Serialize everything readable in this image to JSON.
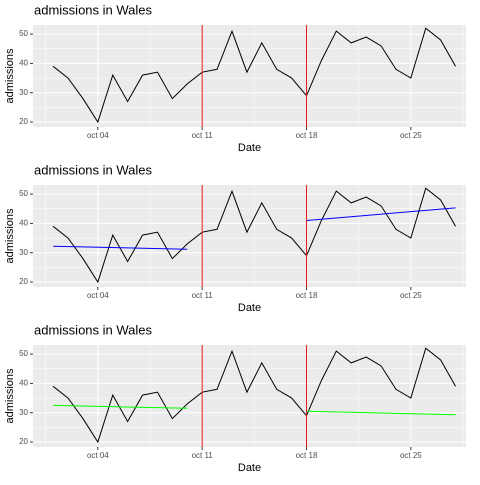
{
  "chart_data": [
    {
      "type": "line",
      "title": "admissions in Wales",
      "xlabel": "Date",
      "ylabel": "admissions",
      "xlim": [
        -0.35,
        28.7
      ],
      "ylim": [
        18.3,
        53.1
      ],
      "xticks": [
        {
          "value": 4,
          "label": "oct 04"
        },
        {
          "value": 11,
          "label": "oct 11"
        },
        {
          "value": 18,
          "label": "oct 18"
        },
        {
          "value": 25,
          "label": "oct 25"
        }
      ],
      "yticks": [
        20,
        30,
        40,
        50
      ],
      "grid": true,
      "vlines": [
        11,
        18
      ],
      "vline_color": "#e41a1c",
      "series": [
        {
          "color": "#000000",
          "x": [
            1,
            2,
            3,
            4,
            5,
            6,
            7,
            8,
            9,
            10,
            11,
            12,
            13,
            14,
            15,
            16,
            17,
            18,
            19,
            20,
            21,
            22,
            23,
            24,
            25,
            26,
            27,
            28
          ],
          "values": [
            39,
            35,
            28,
            20,
            36,
            27,
            36,
            37,
            28,
            33,
            37,
            38,
            51,
            37,
            47,
            38,
            35,
            29,
            41,
            51,
            47,
            49,
            46,
            38,
            35,
            52,
            48,
            39
          ]
        }
      ]
    },
    {
      "type": "line",
      "title": "admissions in Wales",
      "xlabel": "Date",
      "ylabel": "admissions",
      "xlim": [
        -0.35,
        28.7
      ],
      "ylim": [
        18.3,
        53.1
      ],
      "xticks": [
        {
          "value": 4,
          "label": "oct 04"
        },
        {
          "value": 11,
          "label": "oct 11"
        },
        {
          "value": 18,
          "label": "oct 18"
        },
        {
          "value": 25,
          "label": "oct 25"
        }
      ],
      "yticks": [
        20,
        30,
        40,
        50
      ],
      "grid": true,
      "vlines": [
        11,
        18
      ],
      "vline_color": "#e41a1c",
      "series": [
        {
          "color": "#000000",
          "x": [
            1,
            2,
            3,
            4,
            5,
            6,
            7,
            8,
            9,
            10,
            11,
            12,
            13,
            14,
            15,
            16,
            17,
            18,
            19,
            20,
            21,
            22,
            23,
            24,
            25,
            26,
            27,
            28
          ],
          "values": [
            39,
            35,
            28,
            20,
            36,
            27,
            36,
            37,
            28,
            33,
            37,
            38,
            51,
            37,
            47,
            38,
            35,
            29,
            41,
            51,
            47,
            49,
            46,
            38,
            35,
            52,
            48,
            39
          ]
        },
        {
          "color": "#0000ff",
          "x": [
            1,
            10
          ],
          "values": [
            32.2,
            31.2
          ]
        },
        {
          "color": "#0000ff",
          "x": [
            18,
            28
          ],
          "values": [
            41,
            45.3
          ]
        }
      ]
    },
    {
      "type": "line",
      "title": "admissions in Wales",
      "xlabel": "Date",
      "ylabel": "admissions",
      "xlim": [
        -0.35,
        28.7
      ],
      "ylim": [
        18.3,
        53.1
      ],
      "xticks": [
        {
          "value": 4,
          "label": "oct 04"
        },
        {
          "value": 11,
          "label": "oct 11"
        },
        {
          "value": 18,
          "label": "oct 18"
        },
        {
          "value": 25,
          "label": "oct 25"
        }
      ],
      "yticks": [
        20,
        30,
        40,
        50
      ],
      "grid": true,
      "vlines": [
        11,
        18
      ],
      "vline_color": "#e41a1c",
      "series": [
        {
          "color": "#000000",
          "x": [
            1,
            2,
            3,
            4,
            5,
            6,
            7,
            8,
            9,
            10,
            11,
            12,
            13,
            14,
            15,
            16,
            17,
            18,
            19,
            20,
            21,
            22,
            23,
            24,
            25,
            26,
            27,
            28
          ],
          "values": [
            39,
            35,
            28,
            20,
            36,
            27,
            36,
            37,
            28,
            33,
            37,
            38,
            51,
            37,
            47,
            38,
            35,
            29,
            41,
            51,
            47,
            49,
            46,
            38,
            35,
            52,
            48,
            39
          ]
        },
        {
          "color": "#00ff00",
          "x": [
            1,
            10
          ],
          "values": [
            32.5,
            31.5
          ]
        },
        {
          "color": "#00ff00",
          "x": [
            18,
            28
          ],
          "values": [
            30.5,
            29.3
          ]
        }
      ]
    }
  ]
}
